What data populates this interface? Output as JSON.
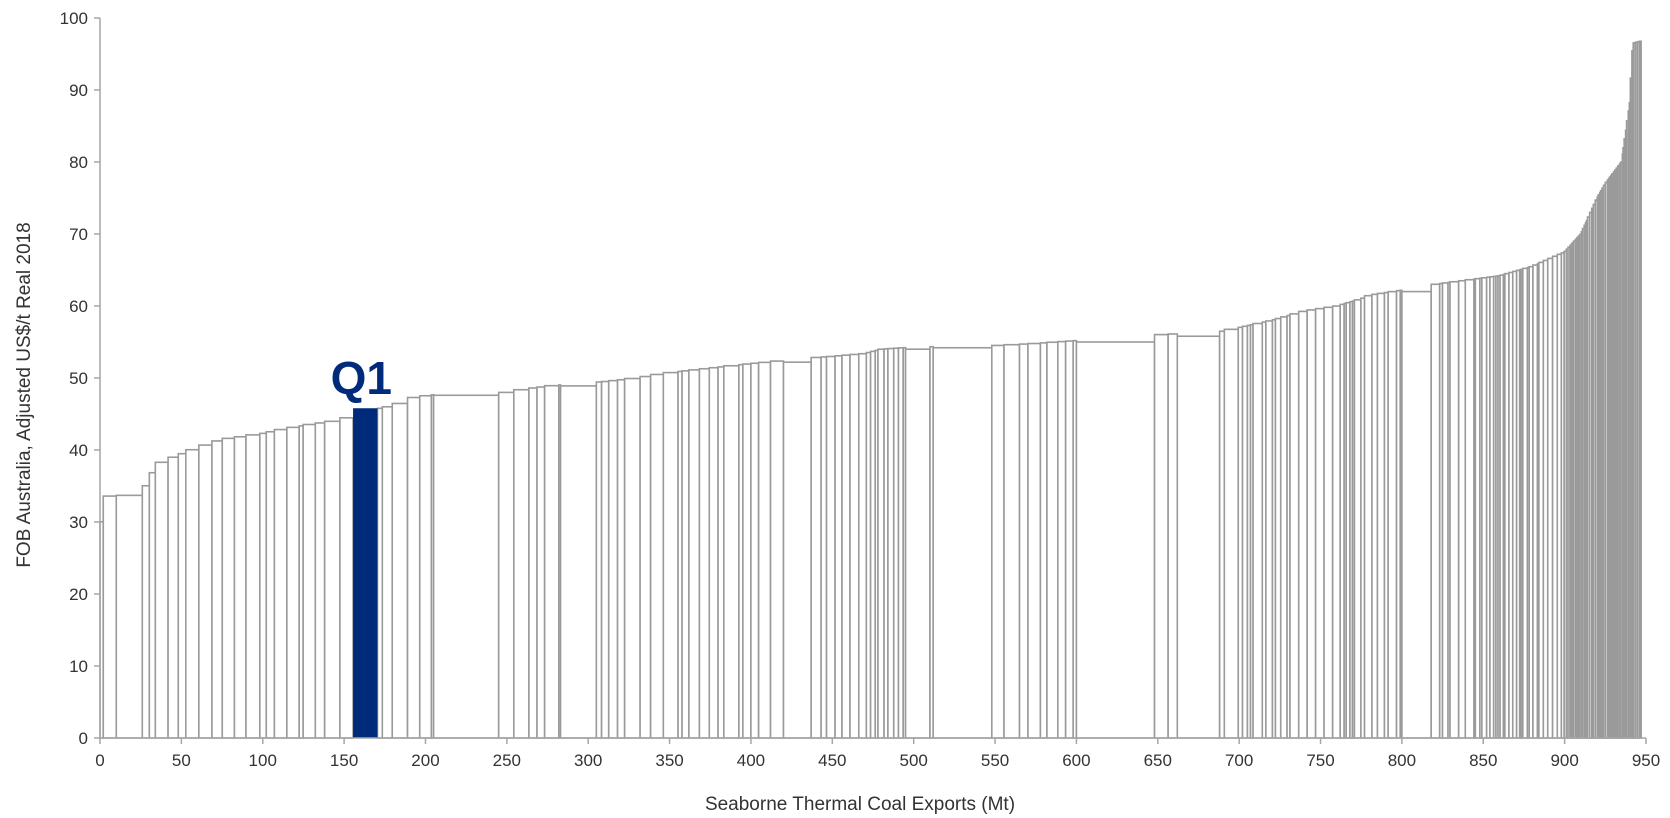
{
  "chart_data": {
    "type": "bar",
    "subtype": "cost-curve",
    "xlabel": "Seaborne Thermal Coal Exports (Mt)",
    "ylabel": "FOB Australia, Adjusted US$/t  Real 2018",
    "xlim": [
      0,
      950
    ],
    "ylim": [
      0,
      100
    ],
    "xticks": [
      0,
      50,
      100,
      150,
      200,
      250,
      300,
      350,
      400,
      450,
      500,
      550,
      600,
      650,
      700,
      750,
      800,
      850,
      900,
      950
    ],
    "yticks": [
      0,
      10,
      20,
      30,
      40,
      50,
      60,
      70,
      80,
      90,
      100
    ],
    "grid": false,
    "bar_fill": "#ffffff",
    "bar_stroke": "#9a9a9a",
    "anchors_x": [
      0,
      3,
      5,
      8,
      10,
      27,
      32,
      37,
      45,
      55,
      65,
      75,
      85,
      100,
      110,
      130,
      150,
      157,
      168,
      183,
      190,
      208,
      250,
      262,
      280,
      310,
      330,
      345,
      360,
      380,
      400,
      410,
      430,
      450,
      470,
      480,
      500,
      550,
      575,
      600,
      650,
      690,
      700,
      720,
      740,
      760,
      775,
      780,
      800,
      820,
      840,
      860,
      880,
      900,
      910,
      920,
      925,
      935,
      940,
      942,
      947
    ],
    "anchors_y": [
      29.8,
      30.5,
      33.5,
      33.8,
      33.7,
      34.5,
      36.8,
      38.2,
      39.0,
      39.9,
      40.7,
      41.5,
      41.8,
      42.3,
      42.8,
      43.6,
      44.2,
      45.5,
      45.6,
      46.3,
      47.2,
      47.8,
      48.0,
      48.5,
      49.0,
      49.5,
      50.0,
      50.6,
      51.0,
      51.5,
      52.0,
      52.2,
      52.7,
      53.0,
      53.4,
      54.0,
      54.3,
      54.5,
      54.8,
      55.2,
      56.0,
      56.5,
      57.0,
      58.0,
      59.3,
      60.0,
      61.0,
      61.5,
      62.2,
      63.0,
      63.6,
      64.2,
      65.5,
      67.5,
      70.0,
      75.0,
      77.0,
      80.0,
      88.0,
      96.5,
      96.8
    ],
    "wide_segments": [
      {
        "x0": 10,
        "x1": 26,
        "value": 33.7
      },
      {
        "x0": 205,
        "x1": 245,
        "value": 47.6
      },
      {
        "x0": 283,
        "x1": 305,
        "value": 48.9
      },
      {
        "x0": 420,
        "x1": 437,
        "value": 52.2
      },
      {
        "x0": 495,
        "x1": 510,
        "value": 54.0
      },
      {
        "x0": 512,
        "x1": 548,
        "value": 54.2
      },
      {
        "x0": 600,
        "x1": 648,
        "value": 55.0
      },
      {
        "x0": 662,
        "x1": 688,
        "value": 55.8
      },
      {
        "x0": 800,
        "x1": 818,
        "value": 62.0
      }
    ],
    "highlight": {
      "label": "Q1",
      "x0": 155.5,
      "x1": 170.5,
      "value": 45.8,
      "color": "#002a7a"
    }
  }
}
